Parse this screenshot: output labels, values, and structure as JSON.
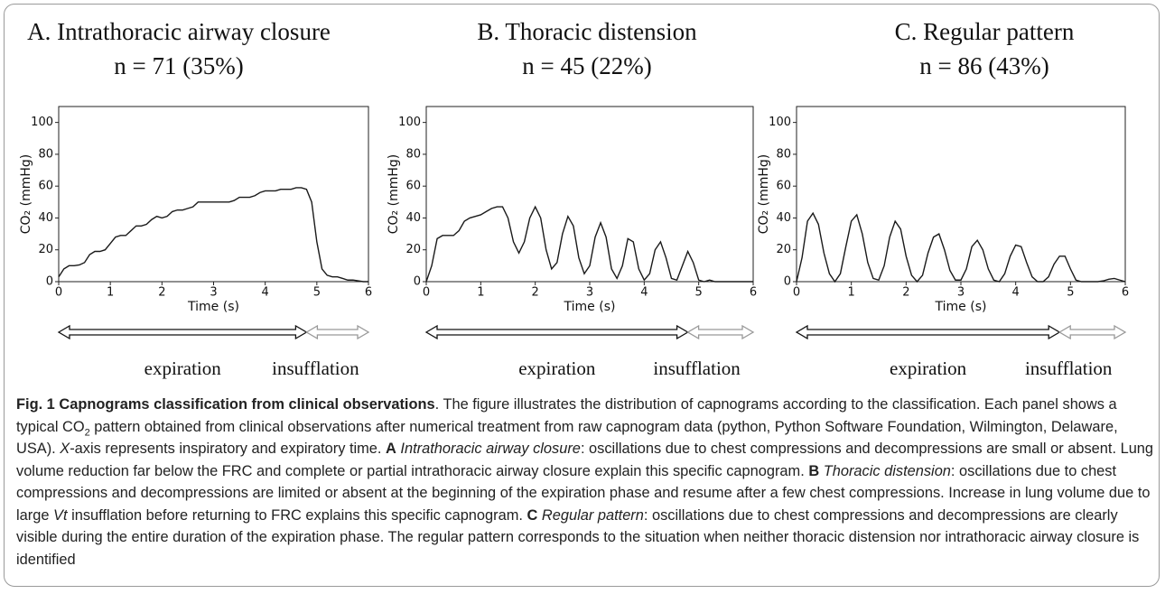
{
  "chart_data": [
    {
      "type": "line",
      "title": "A. Intrathoracic airway closure",
      "subtitle": "n = 71 (35%)",
      "x_label": "Time (s)",
      "y_label": "CO₂ (mmHg)",
      "x": [
        0,
        0.1,
        0.2,
        0.3,
        0.4,
        0.5,
        0.6,
        0.7,
        0.8,
        0.9,
        1,
        1.1,
        1.2,
        1.3,
        1.4,
        1.5,
        1.6,
        1.7,
        1.8,
        1.9,
        2,
        2.1,
        2.2,
        2.3,
        2.4,
        2.5,
        2.6,
        2.7,
        2.8,
        2.9,
        3,
        3.1,
        3.2,
        3.3,
        3.4,
        3.5,
        3.6,
        3.7,
        3.8,
        3.9,
        4,
        4.1,
        4.2,
        4.3,
        4.4,
        4.5,
        4.6,
        4.7,
        4.8,
        4.9,
        5,
        5.1,
        5.2,
        5.3,
        5.4,
        5.5,
        5.6,
        5.7,
        5.8,
        5.9,
        6
      ],
      "series": [
        {
          "color": "#1a1a1a",
          "values": [
            3,
            8,
            10,
            10,
            10.5,
            12,
            17,
            19,
            19,
            20,
            24,
            28,
            29,
            29,
            32,
            35,
            35,
            36,
            39,
            41,
            40,
            41,
            44,
            45,
            45,
            46,
            47,
            50,
            50,
            50,
            50,
            50,
            50,
            50,
            51,
            53,
            53,
            53,
            54,
            56,
            57,
            57,
            57,
            58,
            58,
            58,
            59,
            59,
            58,
            50,
            25,
            8,
            4,
            3,
            3,
            2,
            1,
            1,
            0.5,
            0,
            0
          ]
        }
      ],
      "xlim": [
        0,
        6
      ],
      "ylim": [
        0,
        110
      ],
      "xticks": [
        0,
        1,
        2,
        3,
        4,
        5,
        6
      ],
      "yticks": [
        0,
        20,
        40,
        60,
        80,
        100
      ],
      "annotations": [
        "expiration",
        "insufflation"
      ]
    },
    {
      "type": "line",
      "title": "B. Thoracic distension",
      "subtitle": "n = 45 (22%)",
      "x_label": "Time (s)",
      "y_label": "CO₂ (mmHg)",
      "x": [
        0,
        0.1,
        0.2,
        0.3,
        0.4,
        0.5,
        0.6,
        0.7,
        0.8,
        0.9,
        1,
        1.1,
        1.2,
        1.3,
        1.4,
        1.5,
        1.6,
        1.7,
        1.8,
        1.9,
        2,
        2.1,
        2.2,
        2.3,
        2.4,
        2.5,
        2.6,
        2.7,
        2.8,
        2.9,
        3,
        3.1,
        3.2,
        3.3,
        3.4,
        3.5,
        3.6,
        3.7,
        3.8,
        3.9,
        4,
        4.1,
        4.2,
        4.3,
        4.4,
        4.5,
        4.6,
        4.7,
        4.8,
        4.9,
        5,
        5.1,
        5.2,
        5.3,
        5.4,
        5.5,
        5.6,
        5.7,
        5.8,
        5.9,
        6
      ],
      "series": [
        {
          "color": "#1a1a1a",
          "values": [
            0,
            10,
            27,
            29,
            29,
            29,
            32,
            38,
            40,
            41,
            42,
            44,
            46,
            47,
            47,
            40,
            25,
            18,
            25,
            40,
            47,
            40,
            20,
            8,
            12,
            30,
            41,
            35,
            15,
            5,
            10,
            28,
            37,
            28,
            8,
            2,
            10,
            27,
            25,
            8,
            1,
            5,
            20,
            25,
            15,
            2,
            1,
            10,
            19,
            12,
            1,
            0,
            1,
            0,
            0,
            0,
            0,
            0,
            0,
            0,
            0
          ]
        }
      ],
      "xlim": [
        0,
        6
      ],
      "ylim": [
        0,
        110
      ],
      "xticks": [
        0,
        1,
        2,
        3,
        4,
        5,
        6
      ],
      "yticks": [
        0,
        20,
        40,
        60,
        80,
        100
      ],
      "annotations": [
        "expiration",
        "insufflation"
      ]
    },
    {
      "type": "line",
      "title": "C. Regular pattern",
      "subtitle": "n = 86 (43%)",
      "x_label": "Time (s)",
      "y_label": "CO₂ (mmHg)",
      "x": [
        0,
        0.1,
        0.2,
        0.3,
        0.4,
        0.5,
        0.6,
        0.7,
        0.8,
        0.9,
        1,
        1.1,
        1.2,
        1.3,
        1.4,
        1.5,
        1.6,
        1.7,
        1.8,
        1.9,
        2,
        2.1,
        2.2,
        2.3,
        2.4,
        2.5,
        2.6,
        2.7,
        2.8,
        2.9,
        3,
        3.1,
        3.2,
        3.3,
        3.4,
        3.5,
        3.6,
        3.7,
        3.8,
        3.9,
        4,
        4.1,
        4.2,
        4.3,
        4.4,
        4.5,
        4.6,
        4.7,
        4.8,
        4.9,
        5,
        5.1,
        5.2,
        5.3,
        5.4,
        5.5,
        5.6,
        5.7,
        5.8,
        5.9,
        6
      ],
      "series": [
        {
          "color": "#1a1a1a",
          "values": [
            0,
            15,
            38,
            43,
            36,
            18,
            5,
            0,
            5,
            22,
            38,
            42,
            30,
            12,
            2,
            1,
            10,
            28,
            38,
            33,
            16,
            4,
            0,
            4,
            18,
            28,
            30,
            20,
            7,
            1,
            1,
            8,
            22,
            26,
            20,
            8,
            1,
            0,
            5,
            16,
            23,
            22,
            12,
            3,
            0,
            0,
            3,
            11,
            16,
            16,
            8,
            1,
            0,
            0,
            0,
            0,
            0.5,
            1.5,
            2,
            1,
            0
          ]
        }
      ],
      "xlim": [
        0,
        6
      ],
      "ylim": [
        0,
        110
      ],
      "xticks": [
        0,
        1,
        2,
        3,
        4,
        5,
        6
      ],
      "yticks": [
        0,
        20,
        40,
        60,
        80,
        100
      ],
      "annotations": [
        "expiration",
        "insufflation"
      ]
    }
  ],
  "caption": {
    "runs": [
      "Fig. 1",
      "  Capnograms classification from clinical observations",
      ". The figure illustrates the distribution of capnograms according to the classification. Each panel shows a typical CO",
      "2",
      " pattern obtained from clinical observations after numerical treatment from raw capnogram data (python, Python Software Foundation, Wilmington, Delaware, USA). ",
      "X",
      "-axis represents inspiratory and expiratory time. ",
      "A",
      " Intrathoracic airway closure",
      ": oscillations due to chest compressions and decompressions are small or absent. Lung volume reduction far below the FRC and complete or partial intrathoracic airway closure explain this specific capnogram. ",
      "B",
      " Thoracic distension",
      ": oscillations due to chest compressions and decompressions are limited or absent at the beginning of the expiration phase and resume after a few chest compressions. Increase in lung volume due to large ",
      "Vt",
      " insufflation before returning to FRC explains this specific capnogram. ",
      "C",
      " Regular pattern",
      ": oscillations due to chest compressions and decompressions are clearly visible during the entire duration of the expiration phase. The regular pattern corresponds to the situation when neither thoracic distension nor intrathoracic airway closure is identified"
    ]
  }
}
